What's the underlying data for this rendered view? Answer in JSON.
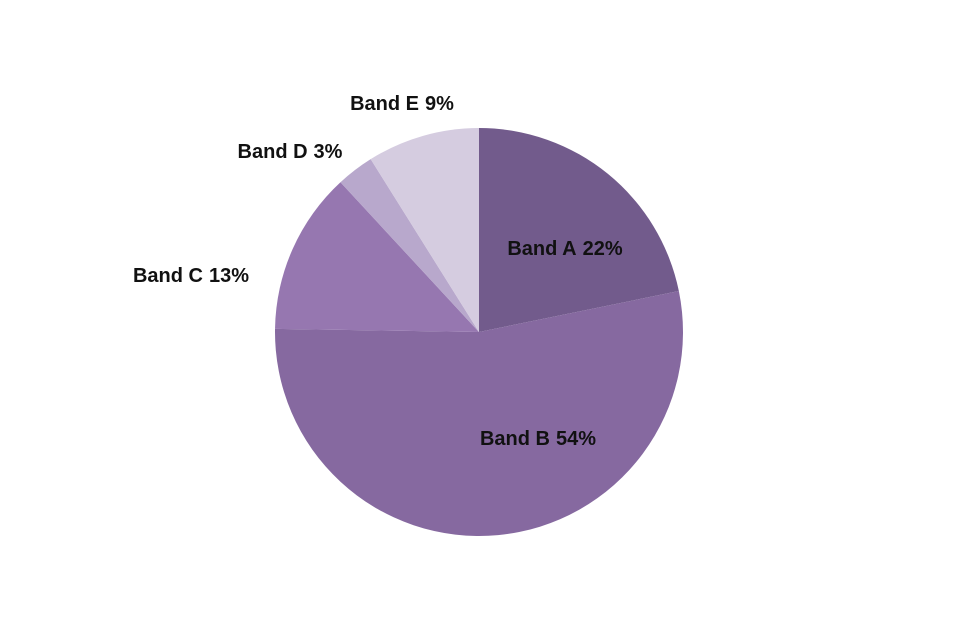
{
  "chart_data": {
    "type": "pie",
    "categories": [
      "Band A",
      "Band B",
      "Band C",
      "Band D",
      "Band E"
    ],
    "values": [
      22,
      54,
      13,
      3,
      9
    ],
    "value_labels": [
      "22%",
      "54%",
      "13%",
      "3%",
      "9%"
    ],
    "colors": [
      "#725b8c",
      "#8669a0",
      "#9677b0",
      "#b8a8cc",
      "#d5cce0"
    ]
  }
}
